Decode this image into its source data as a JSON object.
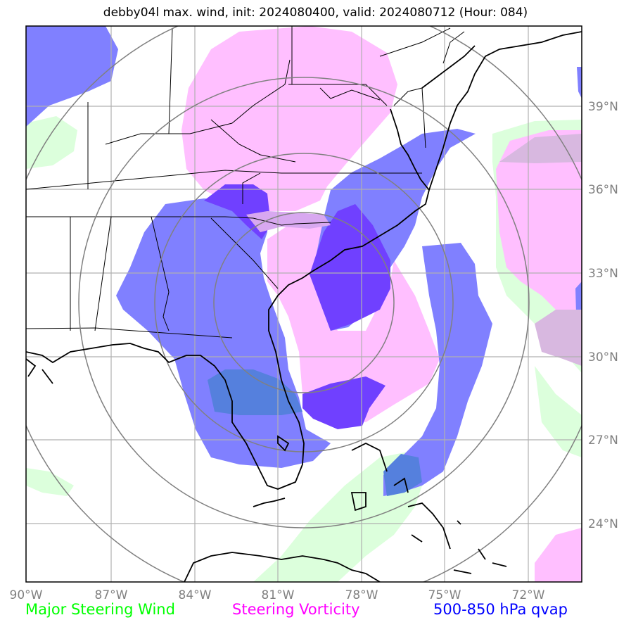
{
  "title": "debby04l max. wind, init: 2024080400, valid: 2024080712 (Hour: 084)",
  "map": {
    "lon_ticks": [
      "90°W",
      "87°W",
      "84°W",
      "81°W",
      "78°W",
      "75°W",
      "72°W"
    ],
    "lat_ticks": [
      "39°N",
      "36°N",
      "33°N",
      "30°N",
      "27°N",
      "24°N"
    ],
    "grid": true,
    "range_rings": 4,
    "colors": {
      "steering_wind": "#7dff7d",
      "vorticity": "#ff80ff",
      "qvap": "#0000ff",
      "grid": "#b0b0b0",
      "rings": "#808080",
      "coast": "#000000"
    }
  },
  "legend": {
    "steering_wind": {
      "label": "Major Steering Wind",
      "color": "#00ff00"
    },
    "vorticity": {
      "label": "Steering Vorticity",
      "color": "#ff00ff"
    },
    "qvap": {
      "label": "500-850 hPa qvap",
      "color": "#0000ff"
    }
  }
}
